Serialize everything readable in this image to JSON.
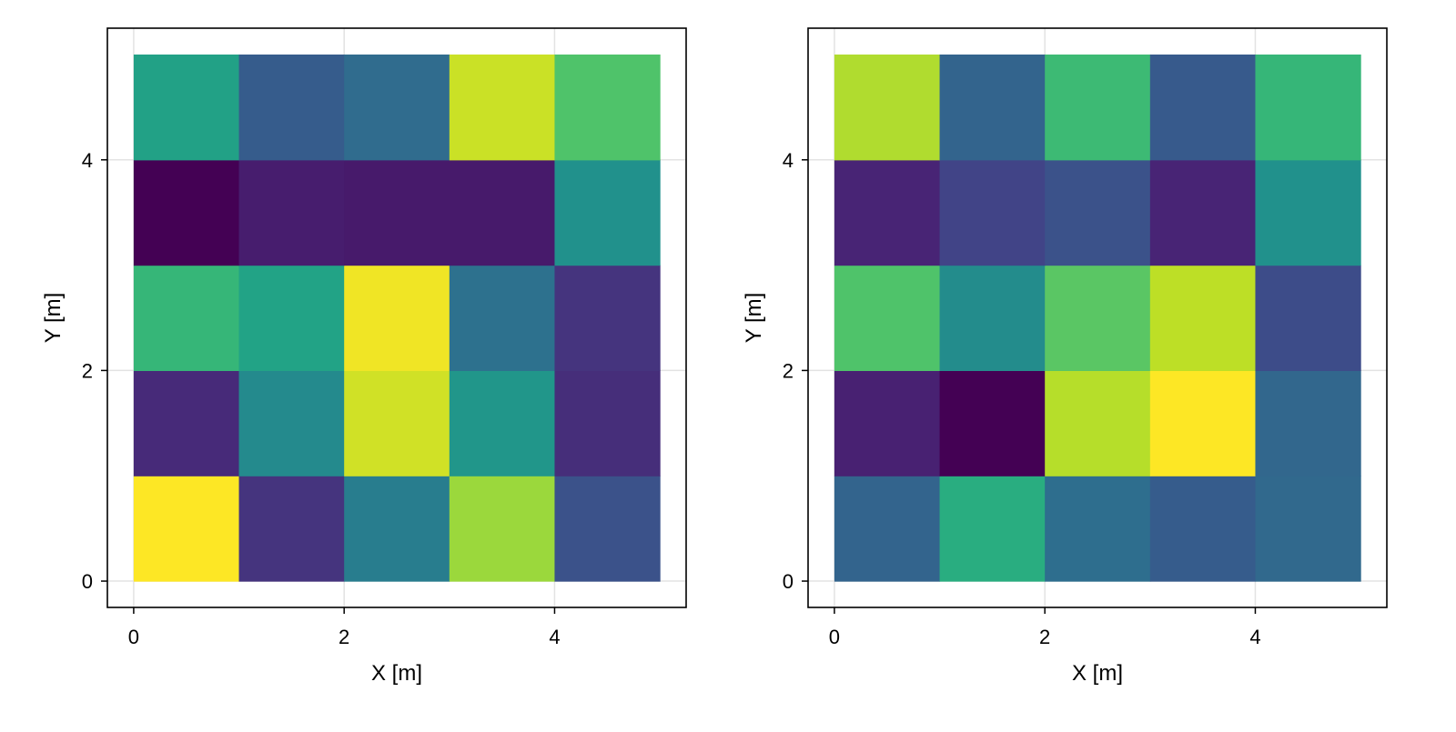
{
  "chart_data": [
    {
      "type": "heatmap",
      "xlabel": "X [m]",
      "ylabel": "Y [m]",
      "x_ticks": [
        "0",
        "2",
        "4"
      ],
      "y_ticks": [
        "0",
        "2",
        "4"
      ],
      "xlim": [
        -0.25,
        5.25
      ],
      "ylim": [
        -0.25,
        5.25
      ],
      "grid": true,
      "colormap": "viridis",
      "cell_size": 1,
      "values": [
        [
          1.0,
          0.15,
          0.42,
          0.85,
          0.25
        ],
        [
          0.12,
          0.47,
          0.93,
          0.52,
          0.13
        ],
        [
          0.66,
          0.58,
          0.98,
          0.37,
          0.15
        ],
        [
          0.0,
          0.08,
          0.07,
          0.07,
          0.5
        ],
        [
          0.57,
          0.29,
          0.35,
          0.92,
          0.72
        ]
      ]
    },
    {
      "type": "heatmap",
      "xlabel": "X [m]",
      "ylabel": "Y [m]",
      "x_ticks": [
        "0",
        "2",
        "4"
      ],
      "y_ticks": [
        "0",
        "2",
        "4"
      ],
      "xlim": [
        -0.25,
        5.25
      ],
      "ylim": [
        -0.25,
        5.25
      ],
      "grid": true,
      "colormap": "viridis",
      "cell_size": 1,
      "values": [
        [
          0.32,
          0.62,
          0.36,
          0.29,
          0.34
        ],
        [
          0.09,
          0.0,
          0.89,
          1.0,
          0.33
        ],
        [
          0.72,
          0.48,
          0.74,
          0.9,
          0.23
        ],
        [
          0.1,
          0.2,
          0.25,
          0.1,
          0.5
        ],
        [
          0.88,
          0.32,
          0.68,
          0.28,
          0.66
        ]
      ]
    }
  ]
}
